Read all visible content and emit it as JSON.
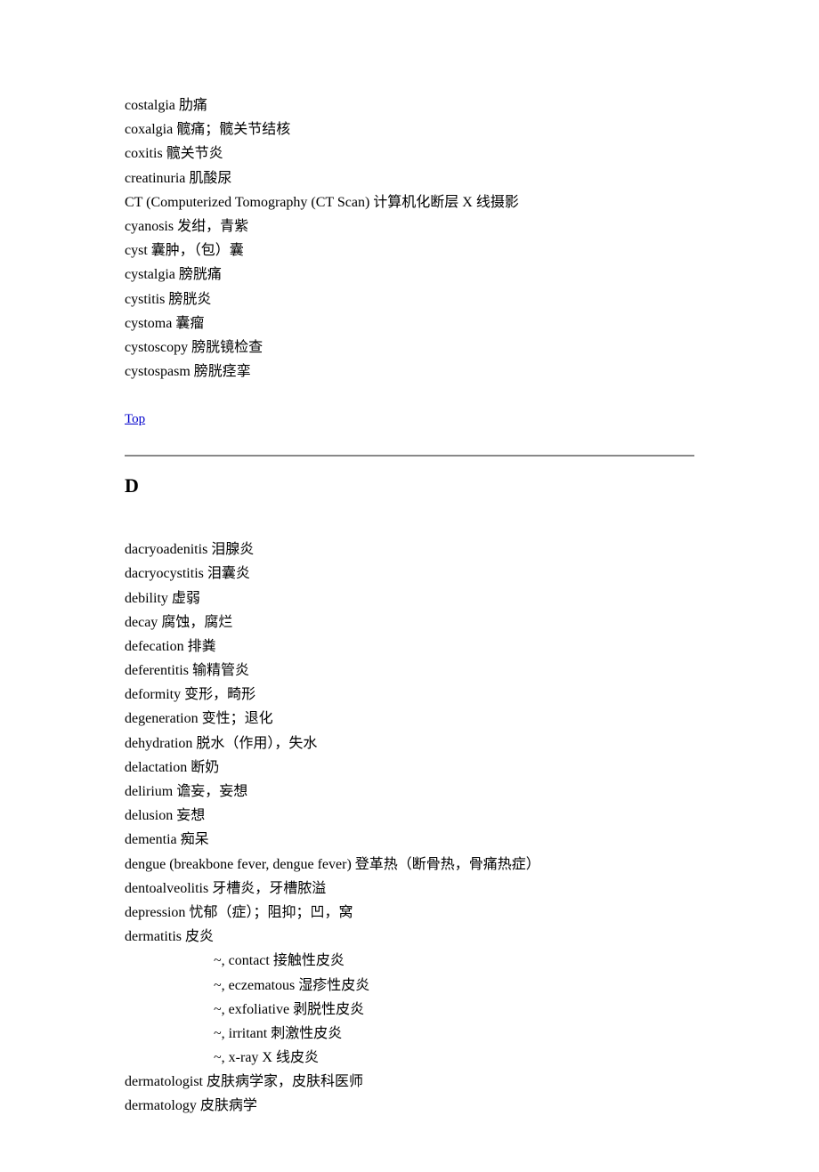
{
  "entries_c": [
    {
      "term": "costalgia",
      "def": "肋痛"
    },
    {
      "term": "coxalgia",
      "def": "髋痛；髋关节结核"
    },
    {
      "term": "coxitis",
      "def": "髋关节炎"
    },
    {
      "term": "creatinuria",
      "def": "肌酸尿"
    },
    {
      "term": "CT (Computerized Tomography (CT Scan)",
      "def": "计算机化断层 X 线摄影"
    },
    {
      "term": "cyanosis",
      "def": "发绀，青紫"
    },
    {
      "term": "cyst",
      "def": "囊肿，（包）囊"
    },
    {
      "term": "cystalgia",
      "def": "膀胱痛"
    },
    {
      "term": "cystitis",
      "def": "膀胱炎"
    },
    {
      "term": "cystoma",
      "def": "囊瘤"
    },
    {
      "term": "cystoscopy",
      "def": "膀胱镜检查"
    },
    {
      "term": "cystospasm",
      "def": "膀胱痉挛"
    }
  ],
  "top_link_label": "Top",
  "section_d_heading": "D",
  "entries_d": [
    {
      "term": "dacryoadenitis",
      "def": "泪腺炎"
    },
    {
      "term": "dacryocystitis",
      "def": "泪囊炎"
    },
    {
      "term": "debility",
      "def": "虚弱"
    },
    {
      "term": "decay",
      "def": "腐蚀，腐烂"
    },
    {
      "term": "defecation",
      "def": "排粪"
    },
    {
      "term": "deferentitis",
      "def": "输精管炎"
    },
    {
      "term": "deformity",
      "def": "变形，畸形"
    },
    {
      "term": "degeneration",
      "def": "变性；退化"
    },
    {
      "term": "dehydration",
      "def": "脱水（作用），失水"
    },
    {
      "term": "delactation",
      "def": "断奶"
    },
    {
      "term": "delirium",
      "def": "谵妄，妄想"
    },
    {
      "term": "delusion",
      "def": "妄想"
    },
    {
      "term": "dementia",
      "def": "痴呆"
    },
    {
      "term": "dengue (breakbone fever, dengue fever)",
      "def": "登革热（断骨热，骨痛热症）"
    },
    {
      "term": "dentoalveolitis",
      "def": "牙槽炎，牙槽脓溢"
    },
    {
      "term": "depression",
      "def": "忧郁（症）；阻抑；凹，窝"
    },
    {
      "term": "dermatitis",
      "def": "皮炎"
    }
  ],
  "subs_dermatitis": [
    {
      "term": "~, contact",
      "def": "接触性皮炎"
    },
    {
      "term": "~, eczematous",
      "def": "湿疹性皮炎"
    },
    {
      "term": "~, exfoliative",
      "def": "剥脱性皮炎"
    },
    {
      "term": "~, irritant",
      "def": "刺激性皮炎"
    },
    {
      "term": "~, x-ray",
      "def": "X 线皮炎"
    }
  ],
  "entries_d2": [
    {
      "term": "dermatologist",
      "def": "皮肤病学家，皮肤科医师"
    },
    {
      "term": "dermatology",
      "def": "皮肤病学"
    }
  ],
  "separator": "    "
}
